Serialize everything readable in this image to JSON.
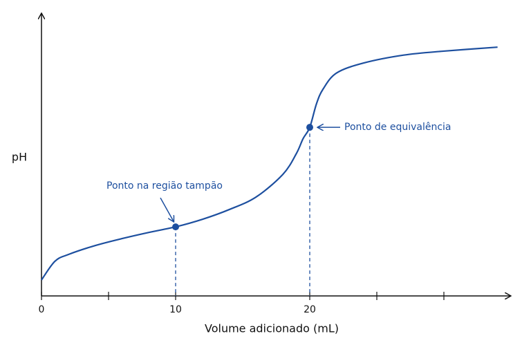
{
  "chart_data": {
    "type": "line",
    "y_label": "pH",
    "x_label": "Volume adicionado (mL)",
    "x": [
      0,
      1,
      2,
      4,
      6,
      8,
      10,
      12,
      14,
      16,
      18,
      19,
      19.5,
      20,
      20.5,
      21,
      22,
      24,
      27,
      30,
      34
    ],
    "series": [
      {
        "color": "#1d4f9f",
        "values": [
          0.8,
          1.74,
          2.08,
          2.53,
          2.88,
          3.19,
          3.47,
          3.85,
          4.34,
          4.97,
          6.11,
          7.15,
          7.9,
          8.47,
          9.65,
          10.4,
          11.2,
          11.7,
          12.1,
          12.3,
          12.5
        ]
      }
    ],
    "points": [
      {
        "x": 10,
        "y": 3.47,
        "label": "Ponto na região tampão"
      },
      {
        "x": 20,
        "y": 8.47,
        "label": "Ponto de equivalência"
      }
    ],
    "xlim": [
      0,
      35
    ],
    "ylim": [
      0,
      14
    ],
    "xticks": [
      0,
      10,
      20
    ],
    "minor_xticks": [
      5,
      25,
      30
    ]
  }
}
